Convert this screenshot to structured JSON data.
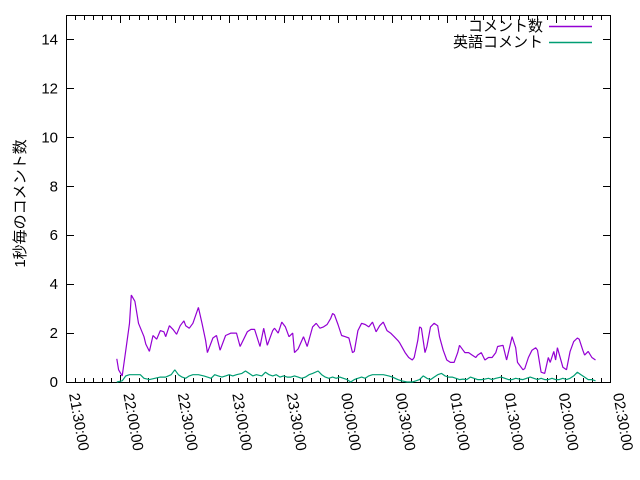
{
  "chart_data": {
    "type": "line",
    "title": "",
    "xlabel": "",
    "ylabel": "1秒毎のコメント数",
    "ylim": [
      0,
      15
    ],
    "ytick_values": [
      0,
      2,
      4,
      6,
      8,
      10,
      12,
      14
    ],
    "xtick_labels": [
      "21:30:00",
      "22:00:00",
      "22:30:00",
      "23:00:00",
      "23:30:00",
      "00:00:00",
      "00:30:00",
      "01:00:00",
      "01:30:00",
      "02:00:00",
      "02:30:00"
    ],
    "x_axis": {
      "unit": "minutes_after_21:30:00",
      "range_minutes": [
        0,
        300
      ],
      "major_tick_minutes": 30,
      "minor_tick_minutes": 5,
      "labels_rotated_degrees": 80
    },
    "grid": false,
    "legend_position": "top-right-inside",
    "colors": {
      "axis": "#000000",
      "background": "#ffffff",
      "series1": "#9400d3",
      "series2": "#009e73"
    },
    "series": [
      {
        "name": "コメント数",
        "color": "#9400d3",
        "points": [
          [
            28,
            0.95
          ],
          [
            29,
            0.5
          ],
          [
            31,
            0.25
          ],
          [
            33,
            1.3
          ],
          [
            35,
            2.4
          ],
          [
            36,
            3.55
          ],
          [
            38,
            3.3
          ],
          [
            40,
            2.4
          ],
          [
            43,
            1.85
          ],
          [
            44,
            1.55
          ],
          [
            46,
            1.25
          ],
          [
            48,
            1.9
          ],
          [
            50,
            1.75
          ],
          [
            52,
            2.1
          ],
          [
            54,
            2.05
          ],
          [
            55,
            1.85
          ],
          [
            57,
            2.3
          ],
          [
            59,
            2.15
          ],
          [
            61,
            1.95
          ],
          [
            63,
            2.3
          ],
          [
            65,
            2.5
          ],
          [
            66,
            2.3
          ],
          [
            68,
            2.2
          ],
          [
            70,
            2.4
          ],
          [
            73,
            3.05
          ],
          [
            75,
            2.4
          ],
          [
            77,
            1.7
          ],
          [
            78,
            1.2
          ],
          [
            81,
            1.8
          ],
          [
            83,
            1.9
          ],
          [
            85,
            1.3
          ],
          [
            88,
            1.9
          ],
          [
            91,
            2.0
          ],
          [
            94,
            2.0
          ],
          [
            96,
            1.45
          ],
          [
            100,
            2.05
          ],
          [
            102,
            2.15
          ],
          [
            104,
            2.15
          ],
          [
            107,
            1.45
          ],
          [
            109,
            2.2
          ],
          [
            111,
            1.5
          ],
          [
            114,
            2.1
          ],
          [
            115,
            2.2
          ],
          [
            117,
            2.0
          ],
          [
            119,
            2.45
          ],
          [
            121,
            2.25
          ],
          [
            123,
            1.85
          ],
          [
            125,
            2.0
          ],
          [
            126,
            1.2
          ],
          [
            128,
            1.35
          ],
          [
            131,
            1.85
          ],
          [
            133,
            1.45
          ],
          [
            136,
            2.25
          ],
          [
            138,
            2.4
          ],
          [
            140,
            2.2
          ],
          [
            142,
            2.25
          ],
          [
            144,
            2.35
          ],
          [
            146,
            2.6
          ],
          [
            147,
            2.8
          ],
          [
            148,
            2.75
          ],
          [
            150,
            2.35
          ],
          [
            152,
            1.9
          ],
          [
            154,
            1.85
          ],
          [
            156,
            1.8
          ],
          [
            158,
            1.2
          ],
          [
            159,
            1.25
          ],
          [
            161,
            2.1
          ],
          [
            163,
            2.4
          ],
          [
            165,
            2.35
          ],
          [
            167,
            2.25
          ],
          [
            169,
            2.45
          ],
          [
            171,
            2.05
          ],
          [
            173,
            2.3
          ],
          [
            175,
            2.45
          ],
          [
            177,
            2.1
          ],
          [
            179,
            2.0
          ],
          [
            181,
            1.85
          ],
          [
            183,
            1.7
          ],
          [
            184,
            1.6
          ],
          [
            187,
            1.2
          ],
          [
            189,
            1.0
          ],
          [
            191,
            0.9
          ],
          [
            192,
            1.0
          ],
          [
            194,
            1.7
          ],
          [
            195,
            2.25
          ],
          [
            196,
            2.2
          ],
          [
            198,
            1.2
          ],
          [
            199,
            1.45
          ],
          [
            201,
            2.25
          ],
          [
            203,
            2.4
          ],
          [
            205,
            2.3
          ],
          [
            206,
            1.85
          ],
          [
            208,
            1.3
          ],
          [
            210,
            0.9
          ],
          [
            212,
            0.8
          ],
          [
            214,
            0.8
          ],
          [
            216,
            1.2
          ],
          [
            217,
            1.5
          ],
          [
            219,
            1.3
          ],
          [
            220,
            1.2
          ],
          [
            222,
            1.2
          ],
          [
            224,
            1.1
          ],
          [
            226,
            1.0
          ],
          [
            227,
            1.1
          ],
          [
            229,
            1.2
          ],
          [
            231,
            0.9
          ],
          [
            233,
            1.0
          ],
          [
            235,
            1.0
          ],
          [
            237,
            1.2
          ],
          [
            238,
            1.45
          ],
          [
            241,
            1.5
          ],
          [
            242,
            1.2
          ],
          [
            243,
            0.9
          ],
          [
            246,
            1.85
          ],
          [
            248,
            1.4
          ],
          [
            249,
            0.8
          ],
          [
            252,
            0.5
          ],
          [
            253,
            0.55
          ],
          [
            255,
            1.0
          ],
          [
            257,
            1.3
          ],
          [
            259,
            1.4
          ],
          [
            260,
            1.3
          ],
          [
            262,
            0.4
          ],
          [
            264,
            0.35
          ],
          [
            266,
            1.0
          ],
          [
            267,
            0.8
          ],
          [
            269,
            1.25
          ],
          [
            270,
            0.9
          ],
          [
            271,
            1.4
          ],
          [
            274,
            0.6
          ],
          [
            276,
            0.5
          ],
          [
            278,
            1.25
          ],
          [
            280,
            1.65
          ],
          [
            282,
            1.8
          ],
          [
            283,
            1.75
          ],
          [
            285,
            1.3
          ],
          [
            286,
            1.1
          ],
          [
            288,
            1.25
          ],
          [
            290,
            1.0
          ],
          [
            292,
            0.9
          ]
        ]
      },
      {
        "name": "英語コメント",
        "color": "#009e73",
        "points": [
          [
            28,
            0
          ],
          [
            31,
            0.05
          ],
          [
            33,
            0.25
          ],
          [
            35,
            0.3
          ],
          [
            38,
            0.3
          ],
          [
            41,
            0.3
          ],
          [
            43,
            0.15
          ],
          [
            46,
            0.1
          ],
          [
            49,
            0.15
          ],
          [
            52,
            0.2
          ],
          [
            55,
            0.2
          ],
          [
            58,
            0.3
          ],
          [
            60,
            0.5
          ],
          [
            62,
            0.3
          ],
          [
            64,
            0.2
          ],
          [
            66,
            0.15
          ],
          [
            68,
            0.25
          ],
          [
            70,
            0.3
          ],
          [
            73,
            0.3
          ],
          [
            76,
            0.25
          ],
          [
            78,
            0.2
          ],
          [
            80,
            0.15
          ],
          [
            82,
            0.3
          ],
          [
            84,
            0.25
          ],
          [
            86,
            0.2
          ],
          [
            88,
            0.25
          ],
          [
            90,
            0.3
          ],
          [
            92,
            0.25
          ],
          [
            94,
            0.3
          ],
          [
            97,
            0.35
          ],
          [
            99,
            0.45
          ],
          [
            101,
            0.35
          ],
          [
            103,
            0.25
          ],
          [
            105,
            0.3
          ],
          [
            108,
            0.25
          ],
          [
            110,
            0.4
          ],
          [
            112,
            0.3
          ],
          [
            114,
            0.25
          ],
          [
            116,
            0.3
          ],
          [
            118,
            0.2
          ],
          [
            120,
            0.25
          ],
          [
            122,
            0.2
          ],
          [
            124,
            0.2
          ],
          [
            126,
            0.25
          ],
          [
            128,
            0.2
          ],
          [
            130,
            0.15
          ],
          [
            132,
            0.2
          ],
          [
            134,
            0.3
          ],
          [
            136,
            0.35
          ],
          [
            139,
            0.45
          ],
          [
            141,
            0.3
          ],
          [
            143,
            0.2
          ],
          [
            145,
            0.15
          ],
          [
            147,
            0.2
          ],
          [
            149,
            0.15
          ],
          [
            151,
            0.2
          ],
          [
            153,
            0.15
          ],
          [
            155,
            0.1
          ],
          [
            157,
            0
          ],
          [
            159,
            0.1
          ],
          [
            161,
            0.15
          ],
          [
            163,
            0.2
          ],
          [
            165,
            0.15
          ],
          [
            167,
            0.25
          ],
          [
            169,
            0.3
          ],
          [
            172,
            0.3
          ],
          [
            175,
            0.3
          ],
          [
            178,
            0.25
          ],
          [
            180,
            0.2
          ],
          [
            183,
            0.1
          ],
          [
            185,
            0.05
          ],
          [
            188,
            0
          ],
          [
            191,
            0
          ],
          [
            193,
            0.05
          ],
          [
            195,
            0.1
          ],
          [
            197,
            0.25
          ],
          [
            199,
            0.15
          ],
          [
            201,
            0.1
          ],
          [
            203,
            0.2
          ],
          [
            205,
            0.3
          ],
          [
            207,
            0.35
          ],
          [
            209,
            0.25
          ],
          [
            211,
            0.2
          ],
          [
            213,
            0.2
          ],
          [
            215,
            0.15
          ],
          [
            217,
            0.1
          ],
          [
            219,
            0.12
          ],
          [
            221,
            0.1
          ],
          [
            223,
            0.2
          ],
          [
            225,
            0.15
          ],
          [
            227,
            0.1
          ],
          [
            229,
            0.1
          ],
          [
            231,
            0.12
          ],
          [
            233,
            0.15
          ],
          [
            235,
            0.1
          ],
          [
            237,
            0.15
          ],
          [
            240,
            0.2
          ],
          [
            242,
            0.15
          ],
          [
            244,
            0.1
          ],
          [
            246,
            0.1
          ],
          [
            248,
            0.15
          ],
          [
            250,
            0.12
          ],
          [
            252,
            0.1
          ],
          [
            254,
            0.15
          ],
          [
            256,
            0.2
          ],
          [
            258,
            0.15
          ],
          [
            260,
            0.1
          ],
          [
            262,
            0.15
          ],
          [
            264,
            0.1
          ],
          [
            266,
            0.1
          ],
          [
            268,
            0.15
          ],
          [
            270,
            0.1
          ],
          [
            272,
            0.1
          ],
          [
            274,
            0.15
          ],
          [
            276,
            0.1
          ],
          [
            278,
            0.15
          ],
          [
            280,
            0.25
          ],
          [
            282,
            0.4
          ],
          [
            284,
            0.3
          ],
          [
            286,
            0.2
          ],
          [
            288,
            0.1
          ],
          [
            290,
            0.1
          ],
          [
            292,
            0.05
          ]
        ]
      }
    ]
  }
}
